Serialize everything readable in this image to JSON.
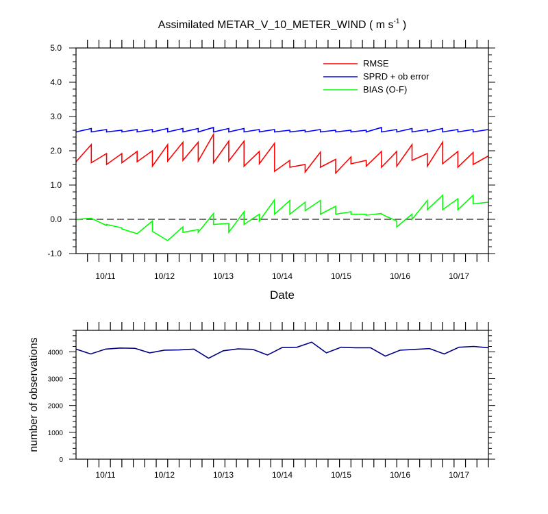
{
  "chart_data": [
    {
      "type": "line",
      "title": "Assimilated METAR_V_10_METER_WIND ( m s",
      "title_superscript": "-1",
      "title_end": " )",
      "xlabel": "Date",
      "ylabel": "",
      "ylim": [
        -1.0,
        5.0
      ],
      "yticks": [
        "-1.0",
        "0.0",
        "1.0",
        "2.0",
        "3.0",
        "4.0",
        "5.0"
      ],
      "xlim": [
        0,
        36
      ],
      "xtick_labels": [
        "10/11",
        "10/12",
        "10/13",
        "10/14",
        "10/15",
        "10/16",
        "10/17"
      ],
      "reference_line": 0.0,
      "legend_position": "top-right",
      "series": [
        {
          "name": "RMSE",
          "color": "#ff0000",
          "points": [
            [
              0,
              1.68
            ],
            [
              1,
              2.18
            ],
            [
              1,
              1.65
            ],
            [
              2,
              1.92
            ],
            [
              2,
              1.6
            ],
            [
              3,
              1.92
            ],
            [
              3,
              1.65
            ],
            [
              4,
              1.98
            ],
            [
              4,
              1.68
            ],
            [
              5,
              2.0
            ],
            [
              5,
              1.55
            ],
            [
              6,
              2.18
            ],
            [
              6,
              1.7
            ],
            [
              7,
              2.25
            ],
            [
              7,
              1.72
            ],
            [
              8,
              2.25
            ],
            [
              8,
              1.7
            ],
            [
              9,
              2.48
            ],
            [
              9,
              1.65
            ],
            [
              10,
              2.28
            ],
            [
              10,
              1.7
            ],
            [
              11,
              2.28
            ],
            [
              11,
              1.55
            ],
            [
              12,
              1.98
            ],
            [
              12,
              1.62
            ],
            [
              13,
              2.22
            ],
            [
              13,
              1.4
            ],
            [
              14,
              1.72
            ],
            [
              14,
              1.52
            ],
            [
              15,
              1.6
            ],
            [
              15,
              1.38
            ],
            [
              16,
              1.96
            ],
            [
              16,
              1.52
            ],
            [
              17,
              1.75
            ],
            [
              17,
              1.35
            ],
            [
              18,
              1.82
            ],
            [
              18,
              1.62
            ],
            [
              19,
              1.72
            ],
            [
              19,
              1.55
            ],
            [
              20,
              1.98
            ],
            [
              20,
              1.52
            ],
            [
              21,
              1.98
            ],
            [
              21,
              1.55
            ],
            [
              22,
              2.18
            ],
            [
              22,
              1.72
            ],
            [
              23,
              1.92
            ],
            [
              23,
              1.55
            ],
            [
              24,
              2.25
            ],
            [
              24,
              1.62
            ],
            [
              25,
              1.98
            ],
            [
              25,
              1.52
            ],
            [
              26,
              1.95
            ],
            [
              26,
              1.6
            ],
            [
              27,
              1.85
            ]
          ]
        },
        {
          "name": "SPRD + ob error",
          "color": "#0000ff",
          "points": [
            [
              0,
              2.55
            ],
            [
              1,
              2.65
            ],
            [
              1,
              2.55
            ],
            [
              2,
              2.62
            ],
            [
              2,
              2.55
            ],
            [
              3,
              2.6
            ],
            [
              3,
              2.55
            ],
            [
              4,
              2.62
            ],
            [
              4,
              2.55
            ],
            [
              5,
              2.62
            ],
            [
              5,
              2.55
            ],
            [
              6,
              2.65
            ],
            [
              6,
              2.55
            ],
            [
              7,
              2.65
            ],
            [
              7,
              2.55
            ],
            [
              8,
              2.65
            ],
            [
              8,
              2.55
            ],
            [
              9,
              2.68
            ],
            [
              9,
              2.55
            ],
            [
              10,
              2.65
            ],
            [
              10,
              2.55
            ],
            [
              11,
              2.65
            ],
            [
              11,
              2.55
            ],
            [
              12,
              2.62
            ],
            [
              12,
              2.55
            ],
            [
              13,
              2.62
            ],
            [
              13,
              2.55
            ],
            [
              14,
              2.6
            ],
            [
              14,
              2.55
            ],
            [
              15,
              2.6
            ],
            [
              15,
              2.55
            ],
            [
              16,
              2.62
            ],
            [
              16,
              2.55
            ],
            [
              17,
              2.6
            ],
            [
              17,
              2.55
            ],
            [
              18,
              2.6
            ],
            [
              18,
              2.55
            ],
            [
              19,
              2.6
            ],
            [
              19,
              2.55
            ],
            [
              20,
              2.68
            ],
            [
              20,
              2.55
            ],
            [
              21,
              2.62
            ],
            [
              21,
              2.55
            ],
            [
              22,
              2.65
            ],
            [
              22,
              2.55
            ],
            [
              23,
              2.62
            ],
            [
              23,
              2.55
            ],
            [
              24,
              2.65
            ],
            [
              24,
              2.55
            ],
            [
              25,
              2.62
            ],
            [
              25,
              2.55
            ],
            [
              26,
              2.62
            ],
            [
              26,
              2.55
            ],
            [
              27,
              2.62
            ]
          ]
        },
        {
          "name": "BIAS (O-F)",
          "color": "#00ff00",
          "points": [
            [
              0,
              0.0
            ],
            [
              1,
              0.03
            ],
            [
              2,
              -0.18
            ],
            [
              2,
              -0.15
            ],
            [
              3,
              -0.25
            ],
            [
              3,
              -0.28
            ],
            [
              4,
              -0.42
            ],
            [
              5,
              -0.05
            ],
            [
              5,
              -0.35
            ],
            [
              6,
              -0.62
            ],
            [
              7,
              -0.22
            ],
            [
              7,
              -0.38
            ],
            [
              8,
              -0.3
            ],
            [
              8,
              -0.38
            ],
            [
              9,
              0.17
            ],
            [
              9,
              -0.15
            ],
            [
              10,
              -0.12
            ],
            [
              10,
              -0.38
            ],
            [
              11,
              0.22
            ],
            [
              11,
              -0.15
            ],
            [
              12,
              0.15
            ],
            [
              12,
              -0.05
            ],
            [
              13,
              0.57
            ],
            [
              13,
              0.15
            ],
            [
              14,
              0.55
            ],
            [
              14,
              0.15
            ],
            [
              15,
              0.5
            ],
            [
              15,
              0.25
            ],
            [
              16,
              0.55
            ],
            [
              16,
              0.15
            ],
            [
              17,
              0.38
            ],
            [
              17,
              0.15
            ],
            [
              18,
              0.22
            ],
            [
              18,
              0.15
            ],
            [
              19,
              0.15
            ],
            [
              19,
              0.12
            ],
            [
              20,
              0.17
            ],
            [
              20,
              0.15
            ],
            [
              21,
              -0.05
            ],
            [
              21,
              -0.22
            ],
            [
              22,
              0.15
            ],
            [
              22,
              0.0
            ],
            [
              23,
              0.55
            ],
            [
              23,
              0.28
            ],
            [
              24,
              0.7
            ],
            [
              24,
              0.28
            ],
            [
              25,
              0.6
            ],
            [
              25,
              0.28
            ],
            [
              26,
              0.7
            ],
            [
              26,
              0.45
            ],
            [
              27,
              0.5
            ]
          ]
        }
      ]
    },
    {
      "type": "line",
      "title": "",
      "xlabel": "",
      "ylabel": "number of observations",
      "ylim": [
        0,
        4800
      ],
      "yticks": [
        "0",
        "1000",
        "2000",
        "3000",
        "4000"
      ],
      "xlim": [
        0,
        36
      ],
      "xtick_labels": [
        "10/11",
        "10/12",
        "10/13",
        "10/14",
        "10/15",
        "10/16",
        "10/17"
      ],
      "series": [
        {
          "name": "number of observations",
          "color": "#000080",
          "points": [
            [
              0,
              4100
            ],
            [
              1,
              3920
            ],
            [
              2,
              4100
            ],
            [
              3,
              4140
            ],
            [
              4,
              4130
            ],
            [
              5,
              3960
            ],
            [
              6,
              4060
            ],
            [
              7,
              4070
            ],
            [
              8,
              4100
            ],
            [
              9,
              3760
            ],
            [
              10,
              4040
            ],
            [
              11,
              4110
            ],
            [
              12,
              4090
            ],
            [
              13,
              3880
            ],
            [
              14,
              4160
            ],
            [
              15,
              4170
            ],
            [
              16,
              4360
            ],
            [
              17,
              3960
            ],
            [
              18,
              4170
            ],
            [
              19,
              4150
            ],
            [
              20,
              4150
            ],
            [
              21,
              3840
            ],
            [
              22,
              4060
            ],
            [
              23,
              4090
            ],
            [
              24,
              4120
            ],
            [
              25,
              3920
            ],
            [
              26,
              4170
            ],
            [
              27,
              4200
            ],
            [
              28,
              4150
            ]
          ]
        }
      ]
    }
  ]
}
